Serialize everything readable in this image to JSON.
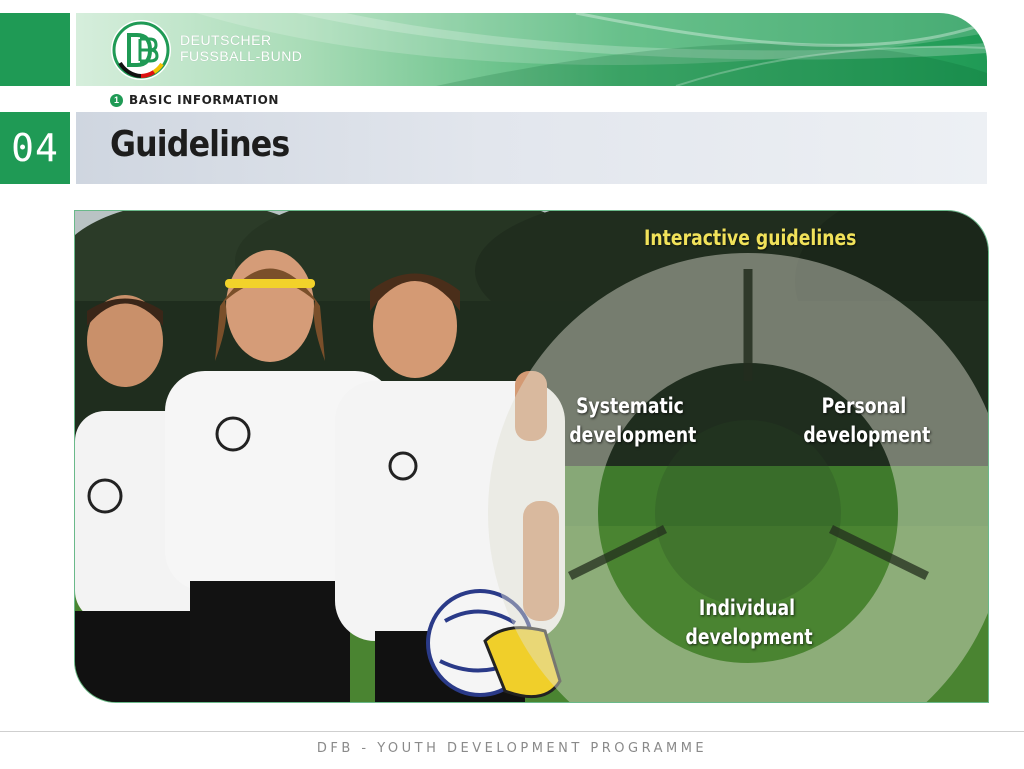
{
  "header": {
    "org_line1": "DEUTSCHER",
    "org_line2": "FUSSBALL-BUND",
    "section_number": "1",
    "section_label": "BASIC INFORMATION",
    "page_number": "04",
    "title": "Guidelines"
  },
  "diagram": {
    "title": "Interactive guidelines",
    "segments": [
      {
        "line1": "Systematic",
        "line2": "development"
      },
      {
        "line1": "Personal",
        "line2": "development"
      },
      {
        "line1": "Individual",
        "line2": "development"
      }
    ]
  },
  "footer": {
    "text": "DFB - YOUTH DEVELOPMENT PROGRAMME"
  },
  "colors": {
    "brand_green": "#1f9a55",
    "title_yellow": "#f1e25a"
  }
}
